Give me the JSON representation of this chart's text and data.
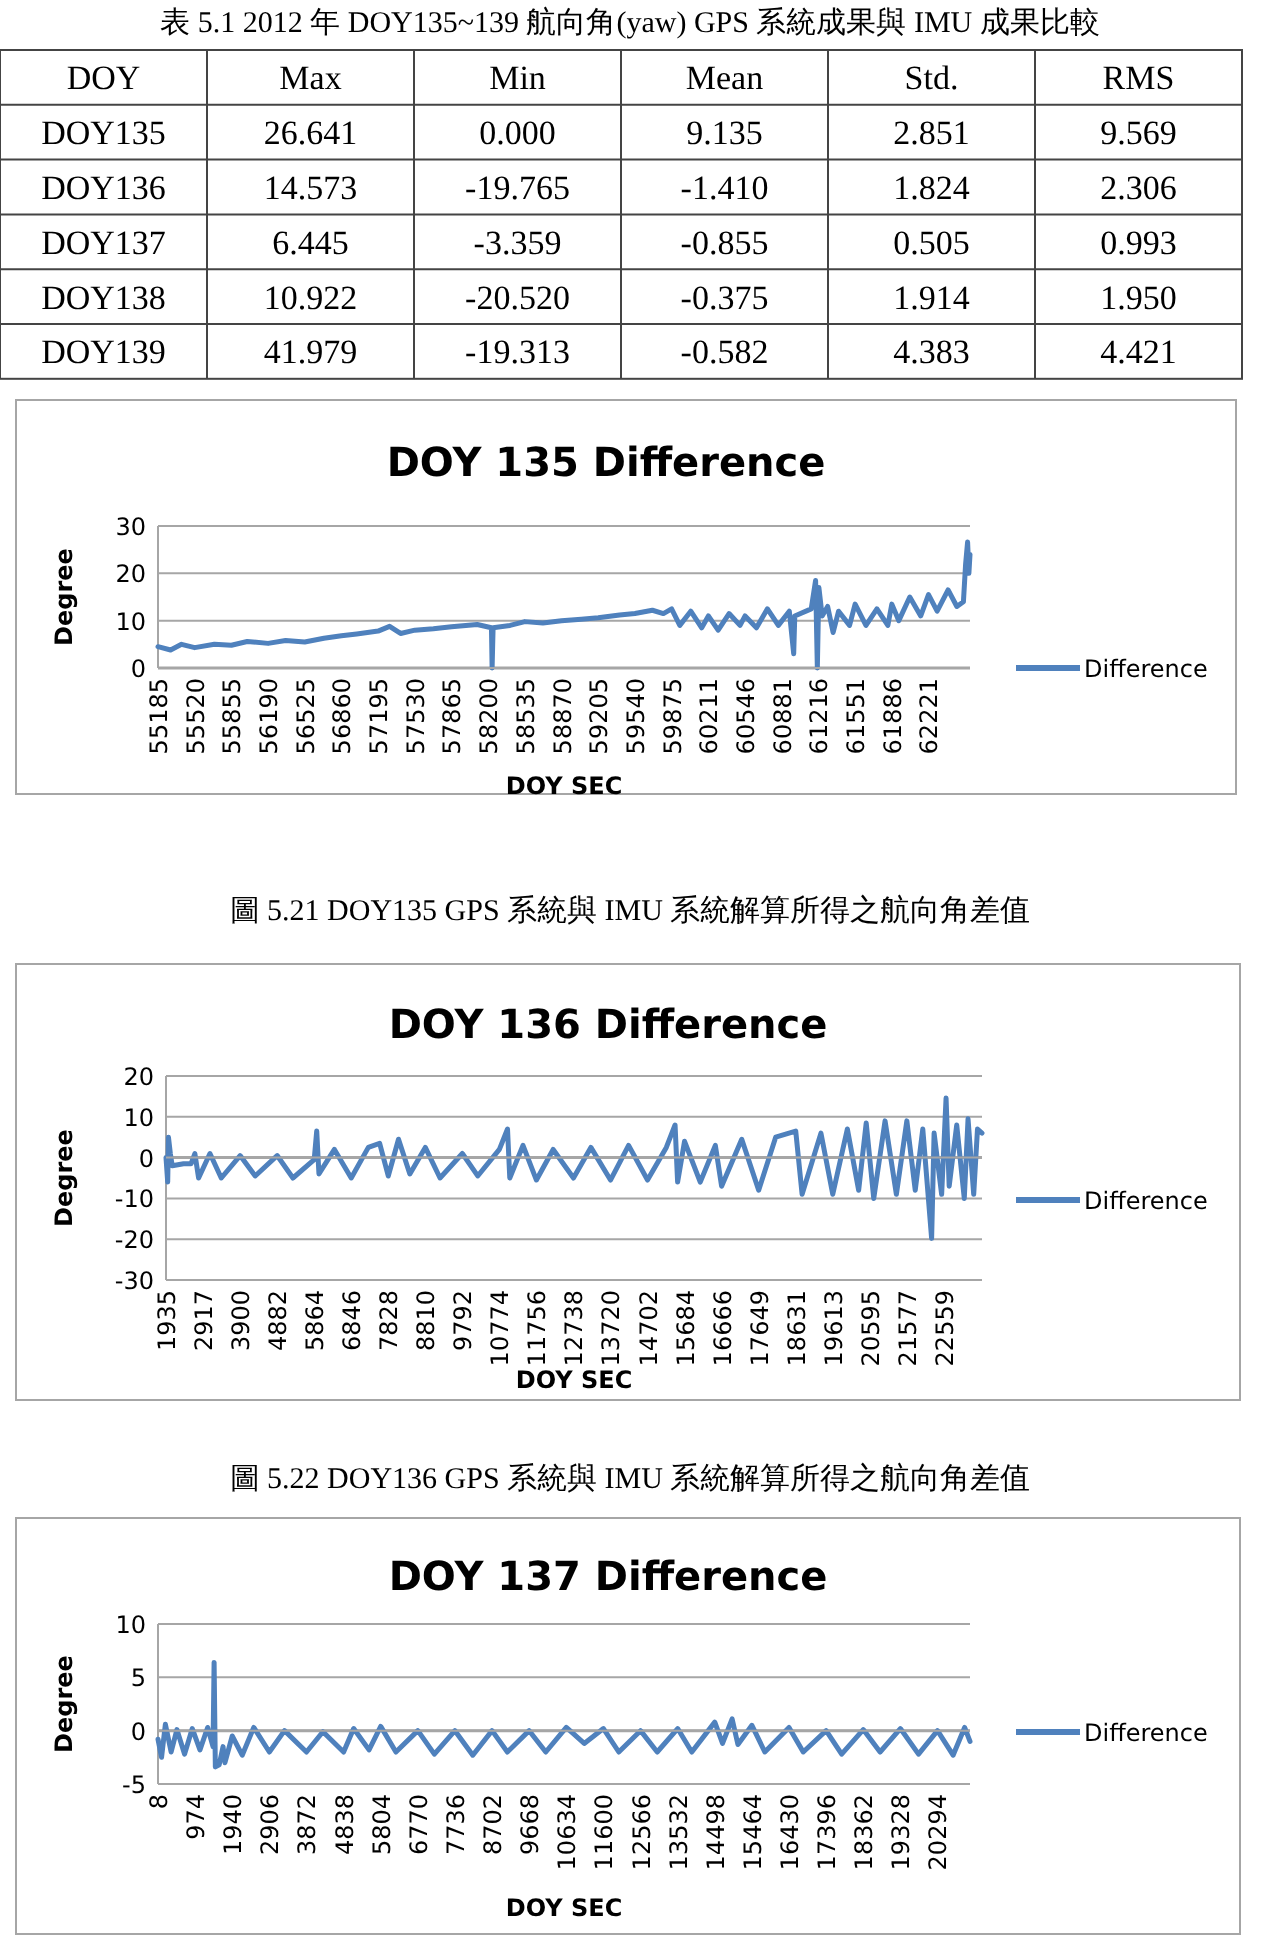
{
  "chart_data": [
    {
      "type": "other",
      "title": "表 5.1 2012 年 DOY135~139 航向角(yaw) GPS 系統成果與 IMU 成果比較",
      "categories": [
        "DOY",
        "Max",
        "Min",
        "Mean",
        "Std.",
        "RMS"
      ],
      "cell_labels": [
        [
          "DOY135",
          "26.641",
          "0.000",
          "9.135",
          "2.851",
          "9.569"
        ],
        [
          "DOY136",
          "14.573",
          "-19.765",
          "-1.410",
          "1.824",
          "2.306"
        ],
        [
          "DOY137",
          "6.445",
          "-3.359",
          "-0.855",
          "0.505",
          "0.993"
        ],
        [
          "DOY138",
          "10.922",
          "-20.520",
          "-0.375",
          "1.914",
          "1.950"
        ],
        [
          "DOY139",
          "41.979",
          "-19.313",
          "-0.582",
          "4.383",
          "4.421"
        ]
      ]
    },
    {
      "type": "line",
      "title": "DOY 135 Difference",
      "xlabel": "DOY SEC",
      "ylabel": "Degree",
      "grid": "y",
      "legend": "right",
      "marker": "none",
      "line_style": "solid",
      "xlim": [
        55185,
        62600
      ],
      "ylim": [
        0,
        30
      ],
      "yticks": [
        0,
        10,
        20,
        30
      ],
      "xticks": [
        55185,
        55520,
        55855,
        56190,
        56525,
        56860,
        57195,
        57530,
        57865,
        58200,
        58535,
        58870,
        59205,
        59540,
        59875,
        60211,
        60546,
        60881,
        61216,
        61551,
        61886,
        62221
      ],
      "annotations": [
        "圖 5.21 DOY135 GPS 系統與 IMU 系統解算所得之航向角差值"
      ],
      "series": [
        {
          "name": "Difference",
          "color": "#4f81bd",
          "x": [
            55185,
            55300,
            55400,
            55520,
            55700,
            55855,
            56000,
            56190,
            56350,
            56525,
            56700,
            56860,
            57000,
            57195,
            57300,
            57400,
            57530,
            57700,
            57865,
            58100,
            58230,
            58236,
            58245,
            58400,
            58535,
            58700,
            58870,
            59050,
            59205,
            59400,
            59540,
            59700,
            59800,
            59875,
            59950,
            60050,
            60150,
            60211,
            60300,
            60400,
            60500,
            60546,
            60650,
            60750,
            60850,
            60950,
            60990,
            61000,
            61150,
            61190,
            61206,
            61220,
            61250,
            61300,
            61350,
            61400,
            61500,
            61551,
            61650,
            61750,
            61850,
            61886,
            61950,
            62050,
            62150,
            62221,
            62300,
            62400,
            62480,
            62540,
            62560,
            62578,
            62590,
            62600
          ],
          "values": [
            4.5,
            3.8,
            5,
            4.3,
            5,
            4.8,
            5.6,
            5.2,
            5.8,
            5.5,
            6.3,
            6.8,
            7.2,
            7.8,
            8.8,
            7.3,
            8,
            8.3,
            8.7,
            9.2,
            8.5,
            0,
            8.5,
            9,
            9.8,
            9.5,
            10,
            10.3,
            10.6,
            11.2,
            11.5,
            12.2,
            11.5,
            12.5,
            9,
            12,
            8.5,
            11,
            8,
            11.5,
            9,
            11,
            8.5,
            12.5,
            9,
            12,
            3,
            11,
            12.5,
            18.5,
            0,
            17,
            11,
            13,
            7.5,
            12,
            9,
            13.5,
            9,
            12.5,
            9,
            13.5,
            10,
            15,
            11,
            15.5,
            12,
            16.5,
            13,
            14,
            22,
            26.6,
            20,
            24
          ]
        }
      ]
    },
    {
      "type": "line",
      "title": "DOY 136 Difference",
      "xlabel": "DOY SEC",
      "ylabel": "Degree",
      "grid": "y",
      "legend": "right",
      "marker": "none",
      "line_style": "solid",
      "xlim": [
        1935,
        23570
      ],
      "ylim": [
        -30,
        20
      ],
      "yticks": [
        -30,
        -20,
        -10,
        0,
        10,
        20
      ],
      "xticks": [
        1935,
        2917,
        3900,
        4882,
        5864,
        6846,
        7828,
        8810,
        9792,
        10774,
        11756,
        12738,
        13720,
        14702,
        15684,
        16666,
        17649,
        18631,
        19613,
        20595,
        21577,
        22559
      ],
      "annotations": [
        "圖 5.22 DOY136 GPS 系統與 IMU 系統解算所得之航向角差值"
      ],
      "series": [
        {
          "name": "Difference",
          "color": "#4f81bd",
          "x": [
            1935,
            1980,
            2000,
            2050,
            2100,
            2400,
            2600,
            2700,
            2800,
            3100,
            3400,
            3900,
            4300,
            4882,
            5300,
            5864,
            5931,
            5990,
            6400,
            6846,
            7300,
            7600,
            7828,
            8100,
            8400,
            8810,
            9200,
            9792,
            10200,
            10774,
            10990,
            11050,
            11400,
            11756,
            12200,
            12738,
            13200,
            13720,
            14200,
            14702,
            15200,
            15432,
            15500,
            15684,
            16100,
            16500,
            16666,
            17200,
            17649,
            18100,
            18631,
            18800,
            19300,
            19613,
            20000,
            20300,
            20500,
            20700,
            21000,
            21300,
            21577,
            21800,
            22000,
            22234,
            22300,
            22500,
            22617,
            22700,
            22900,
            23100,
            23200,
            23350,
            23450,
            23570
          ],
          "values": [
            0,
            -6,
            5,
            1,
            -2,
            -1.5,
            -1.5,
            1,
            -5,
            1,
            -5,
            0.5,
            -4.5,
            0.5,
            -5,
            -0.5,
            6.5,
            -4,
            2,
            -5,
            2.5,
            3.5,
            -4.5,
            4.5,
            -4,
            2.5,
            -5,
            1,
            -4.5,
            2,
            7,
            -5,
            3,
            -5.5,
            2,
            -5,
            2.5,
            -5.5,
            3,
            -5.5,
            2.5,
            8,
            -6,
            4,
            -6,
            3,
            -7,
            4.5,
            -8,
            5,
            6.5,
            -9,
            6,
            -9,
            7,
            -8,
            8.5,
            -10,
            9,
            -9,
            9,
            -8,
            7,
            -19.8,
            6,
            -9,
            14.6,
            -7,
            8,
            -10,
            9.5,
            -9,
            7,
            6
          ]
        }
      ]
    },
    {
      "type": "line",
      "title": "DOY 137 Difference",
      "xlabel": "DOY SEC",
      "ylabel": "Degree",
      "grid": "y",
      "legend": "right",
      "marker": "none",
      "line_style": "solid",
      "xlim": [
        8,
        21140
      ],
      "ylim": [
        -5,
        10
      ],
      "yticks": [
        -5,
        0,
        5,
        10
      ],
      "xticks": [
        8,
        974,
        1940,
        2906,
        3872,
        4838,
        5804,
        6770,
        7736,
        8702,
        9668,
        10634,
        11600,
        12566,
        13532,
        14498,
        15464,
        16430,
        17396,
        18362,
        19328,
        20294
      ],
      "series": [
        {
          "name": "Difference",
          "color": "#4f81bd",
          "x": [
            8,
            100,
            200,
            350,
            500,
            700,
            900,
            1100,
            1300,
            1440,
            1468,
            1500,
            1600,
            1700,
            1750,
            1940,
            2200,
            2500,
            2906,
            3300,
            3872,
            4300,
            4838,
            5100,
            5500,
            5804,
            6200,
            6770,
            7200,
            7736,
            8200,
            8702,
            9100,
            9668,
            10100,
            10634,
            11100,
            11600,
            12000,
            12566,
            13000,
            13532,
            13900,
            14498,
            14700,
            14950,
            15100,
            15464,
            15800,
            16430,
            16800,
            17396,
            17800,
            18362,
            18800,
            19328,
            19800,
            20294,
            20700,
            21000,
            21140
          ],
          "values": [
            -0.8,
            -2.5,
            0.6,
            -2,
            0.1,
            -2.2,
            0.2,
            -1.8,
            0.3,
            -1.5,
            6.4,
            -3.4,
            -3.2,
            -1.5,
            -3,
            -0.5,
            -2.3,
            0.3,
            -2,
            0,
            -2,
            -0.1,
            -2,
            0.2,
            -1.8,
            0.4,
            -2,
            0,
            -2.2,
            0,
            -2.3,
            0,
            -2,
            0,
            -2,
            0.3,
            -1.2,
            0.2,
            -2,
            0,
            -2,
            0.2,
            -2,
            0.8,
            -1.2,
            1.1,
            -1.3,
            0.5,
            -2,
            0.3,
            -2,
            0,
            -2.2,
            0.1,
            -2,
            0.2,
            -2.2,
            0,
            -2.3,
            0.3,
            -1
          ]
        }
      ]
    }
  ]
}
